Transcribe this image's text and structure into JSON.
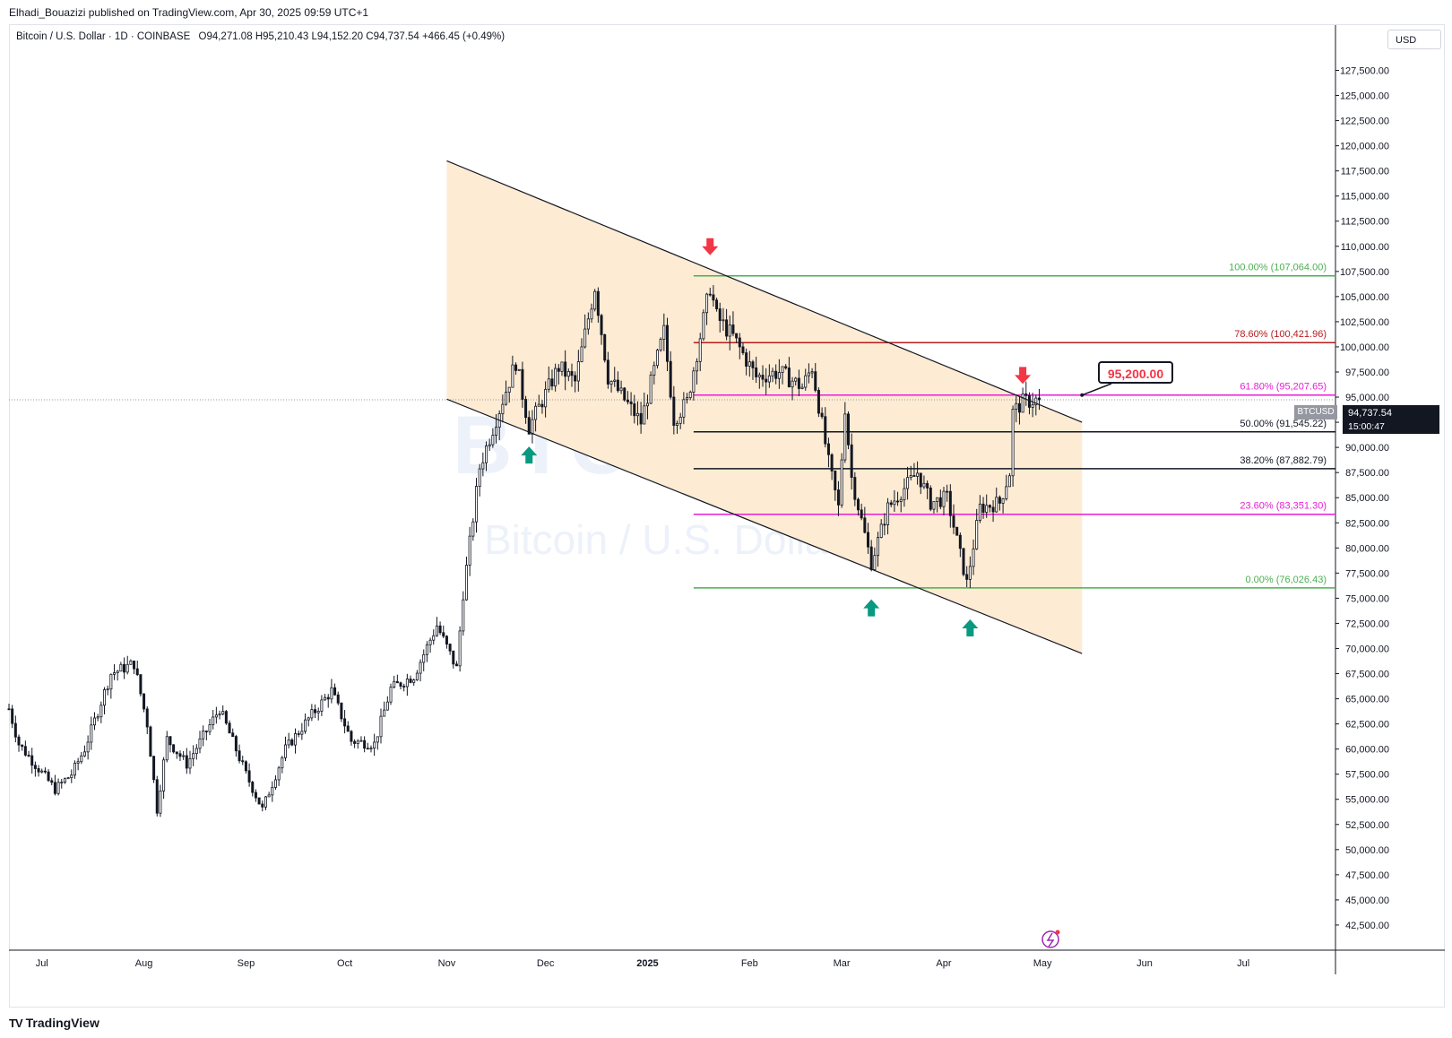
{
  "header": {
    "published": "Elhadi_Bouazizi published on TradingView.com, Apr 30, 2025 09:59 UTC+1"
  },
  "symbol": {
    "name": "Bitcoin / U.S. Dollar · 1D · COINBASE",
    "o_label": "O",
    "o": "94,271.08",
    "h_label": "H",
    "h": "95,210.43",
    "l_label": "L",
    "l": "94,152.20",
    "c_label": "C",
    "c": "94,737.54",
    "change": "+466.45 (+0.49%)"
  },
  "watermark": {
    "ticker": "BTCUSD, 1D",
    "name": "Bitcoin / U.S. Dollar"
  },
  "currency": "USD",
  "last_price": {
    "symbol_tag": "BTCUSD",
    "price": "94,737.54",
    "countdown": "15:00:47"
  },
  "callout": {
    "label": "95,200.00"
  },
  "footer": {
    "brand": "TradingView",
    "logo_glyph": "TV"
  },
  "colors": {
    "channel_fill": "#fdebd3",
    "green": "#4caf50",
    "red": "#b71c1c",
    "magenta": "#e91ed6",
    "black": "#131722",
    "arrow_up": "#089981",
    "arrow_down": "#f23645"
  },
  "chart_data": {
    "type": "candlestick",
    "y_axis": {
      "range": [
        40000,
        132000
      ],
      "ticks": [
        42500,
        45000,
        47500,
        50000,
        52500,
        55000,
        57500,
        60000,
        62500,
        65000,
        67500,
        70000,
        72500,
        75000,
        77500,
        80000,
        82500,
        85000,
        87500,
        90000,
        92500,
        95000,
        97500,
        100000,
        102500,
        105000,
        107500,
        110000,
        112500,
        115000,
        117500,
        120000,
        122500,
        125000,
        127500
      ],
      "tick_labels": [
        "42,500.00",
        "45,000.00",
        "47,500.00",
        "50,000.00",
        "52,500.00",
        "55,000.00",
        "57,500.00",
        "60,000.00",
        "62,500.00",
        "65,000.00",
        "67,500.00",
        "70,000.00",
        "72,500.00",
        "75,000.00",
        "77,500.00",
        "80,000.00",
        "82,500.00",
        "85,000.00",
        "87,500.00",
        "90,000.00",
        "92,500.00",
        "95,000.00",
        "97,500.00",
        "100,000.00",
        "102,500.00",
        "105,000.00",
        "107,500.00",
        "110,000.00",
        "112,500.00",
        "115,000.00",
        "117,500.00",
        "120,000.00",
        "122,500.00",
        "125,000.00",
        "127,500.00"
      ]
    },
    "x_axis": {
      "ticks": [
        {
          "label": "Jul",
          "date": "2024-07-01"
        },
        {
          "label": "Aug",
          "date": "2024-08-01"
        },
        {
          "label": "Sep",
          "date": "2024-09-01"
        },
        {
          "label": "Oct",
          "date": "2024-10-01"
        },
        {
          "label": "Nov",
          "date": "2024-11-01"
        },
        {
          "label": "Dec",
          "date": "2024-12-01"
        },
        {
          "label": "2025",
          "date": "2025-01-01"
        },
        {
          "label": "Feb",
          "date": "2025-02-01"
        },
        {
          "label": "Mar",
          "date": "2025-03-01"
        },
        {
          "label": "Apr",
          "date": "2025-04-01"
        },
        {
          "label": "May",
          "date": "2025-05-01"
        },
        {
          "label": "Jun",
          "date": "2025-06-01"
        },
        {
          "label": "Jul",
          "date": "2025-07-01"
        }
      ],
      "range": [
        "2024-06-21",
        "2025-07-29"
      ]
    },
    "price_path": [
      [
        "2024-06-21",
        64000
      ],
      [
        "2024-06-24",
        60500
      ],
      [
        "2024-07-05",
        56000
      ],
      [
        "2024-07-10",
        57500
      ],
      [
        "2024-07-14",
        60000
      ],
      [
        "2024-07-22",
        67500
      ],
      [
        "2024-07-29",
        68500
      ],
      [
        "2024-08-02",
        62500
      ],
      [
        "2024-08-05",
        54000
      ],
      [
        "2024-08-08",
        61000
      ],
      [
        "2024-08-14",
        58500
      ],
      [
        "2024-08-24",
        64000
      ],
      [
        "2024-09-01",
        57500
      ],
      [
        "2024-09-06",
        54000
      ],
      [
        "2024-09-13",
        60000
      ],
      [
        "2024-09-20",
        63000
      ],
      [
        "2024-09-27",
        65800
      ],
      [
        "2024-10-03",
        60800
      ],
      [
        "2024-10-10",
        60500
      ],
      [
        "2024-10-15",
        66000
      ],
      [
        "2024-10-22",
        67300
      ],
      [
        "2024-10-29",
        72300
      ],
      [
        "2024-11-04",
        68000
      ],
      [
        "2024-11-06",
        75500
      ],
      [
        "2024-11-11",
        88000
      ],
      [
        "2024-11-13",
        90000
      ],
      [
        "2024-11-22",
        98500
      ],
      [
        "2024-11-26",
        92000
      ],
      [
        "2024-12-05",
        98000
      ],
      [
        "2024-12-10",
        96500
      ],
      [
        "2024-12-16",
        106000
      ],
      [
        "2024-12-20",
        97000
      ],
      [
        "2024-12-30",
        92500
      ],
      [
        "2025-01-06",
        101500
      ],
      [
        "2025-01-09",
        92800
      ],
      [
        "2025-01-13",
        94500
      ],
      [
        "2025-01-20",
        106000
      ],
      [
        "2025-01-22",
        103000
      ],
      [
        "2025-01-27",
        101000
      ],
      [
        "2025-02-03",
        97000
      ],
      [
        "2025-02-10",
        97500
      ],
      [
        "2025-02-17",
        96000
      ],
      [
        "2025-02-20",
        98000
      ],
      [
        "2025-02-25",
        88500
      ],
      [
        "2025-02-28",
        84000
      ],
      [
        "2025-03-02",
        94000
      ],
      [
        "2025-03-04",
        87000
      ],
      [
        "2025-03-10",
        78500
      ],
      [
        "2025-03-15",
        84000
      ],
      [
        "2025-03-24",
        87500
      ],
      [
        "2025-03-28",
        84500
      ],
      [
        "2025-04-02",
        85000
      ],
      [
        "2025-04-08",
        76500
      ],
      [
        "2025-04-12",
        84000
      ],
      [
        "2025-04-18",
        84500
      ],
      [
        "2025-04-21",
        87500
      ],
      [
        "2025-04-22",
        93500
      ],
      [
        "2025-04-25",
        94500
      ],
      [
        "2025-04-30",
        94737.54
      ]
    ],
    "channel": {
      "upper": [
        [
          "2024-11-01",
          118500
        ],
        [
          "2025-05-13",
          92500
        ]
      ],
      "lower": [
        [
          "2024-11-01",
          94800
        ],
        [
          "2025-05-13",
          69500
        ]
      ]
    },
    "fib_start": "2025-01-15",
    "fib_levels": [
      {
        "label": "100.00% (107,064.00)",
        "value": 107064.0,
        "color": "#4caf50"
      },
      {
        "label": "78.60% (100,421.96)",
        "value": 100421.96,
        "color": "#b71c1c"
      },
      {
        "label": "61.80% (95,207.65)",
        "value": 95207.65,
        "color": "#e91ed6"
      },
      {
        "label": "50.00% (91,545.22)",
        "value": 91545.22,
        "color": "#131722"
      },
      {
        "label": "38.20% (87,882.79)",
        "value": 87882.79,
        "color": "#131722"
      },
      {
        "label": "23.60% (83,351.30)",
        "value": 83351.3,
        "color": "#e91ed6"
      },
      {
        "label": "0.00% (76,026.43)",
        "value": 76026.43,
        "color": "#4caf50"
      }
    ],
    "arrows": [
      {
        "dir": "up",
        "date": "2024-11-26",
        "value": 89200
      },
      {
        "dir": "down",
        "date": "2025-01-20",
        "value": 110000
      },
      {
        "dir": "up",
        "date": "2025-03-10",
        "value": 74000
      },
      {
        "dir": "up",
        "date": "2025-04-09",
        "value": 72000
      },
      {
        "dir": "down",
        "date": "2025-04-25",
        "value": 97200
      }
    ],
    "callout_date": "2025-05-13",
    "callout_value": 95200,
    "current_price": 94737.54
  }
}
